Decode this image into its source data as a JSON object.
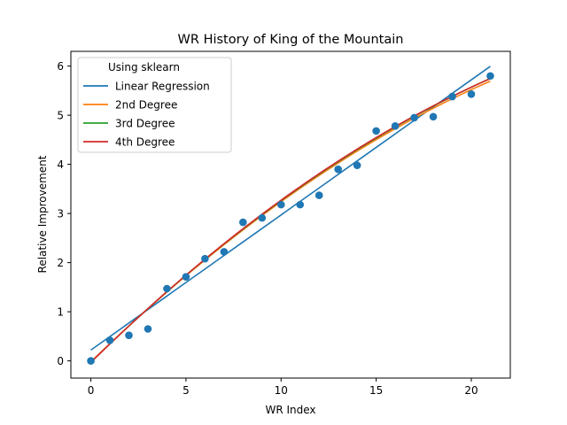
{
  "chart_data": {
    "type": "scatter",
    "title": "WR History of King of the Mountain",
    "xlabel": "WR Index",
    "ylabel": "Relative Improvement",
    "xlim": [
      -1.05,
      22.05
    ],
    "ylim": [
      -0.35,
      6.3
    ],
    "xticks": [
      0,
      5,
      10,
      15,
      20
    ],
    "yticks": [
      0,
      1,
      2,
      3,
      4,
      5,
      6
    ],
    "grid": false,
    "legend": {
      "title": "Using sklearn",
      "placement": "top-left"
    },
    "points": {
      "color": "#1f77b4",
      "x": [
        0,
        1,
        2,
        3,
        4,
        5,
        6,
        7,
        8,
        9,
        10,
        11,
        12,
        13,
        14,
        15,
        16,
        17,
        18,
        19,
        20,
        21
      ],
      "y": [
        0.0,
        0.42,
        0.52,
        0.65,
        1.47,
        1.71,
        2.08,
        2.22,
        2.82,
        2.91,
        3.18,
        3.18,
        3.37,
        3.9,
        3.98,
        4.68,
        4.78,
        4.95,
        4.97,
        5.38,
        5.43,
        5.8
      ]
    },
    "series": [
      {
        "name": "Linear Regression",
        "color": "#1f77b4",
        "kind": "linear",
        "coef": [
          0.22,
          0.275
        ]
      },
      {
        "name": "2nd Degree",
        "color": "#ff7f0e",
        "kind": "poly",
        "coef": [
          -0.02,
          0.375,
          -0.0049
        ]
      },
      {
        "name": "3rd Degree",
        "color": "#2ca02c",
        "kind": "poly",
        "coef": [
          -0.03,
          0.38,
          -0.0052,
          1e-05
        ]
      },
      {
        "name": "4th Degree",
        "color": "#d62728",
        "kind": "poly",
        "coef": [
          -0.03,
          0.38,
          -0.005,
          0.0,
          0.0
        ]
      }
    ]
  }
}
